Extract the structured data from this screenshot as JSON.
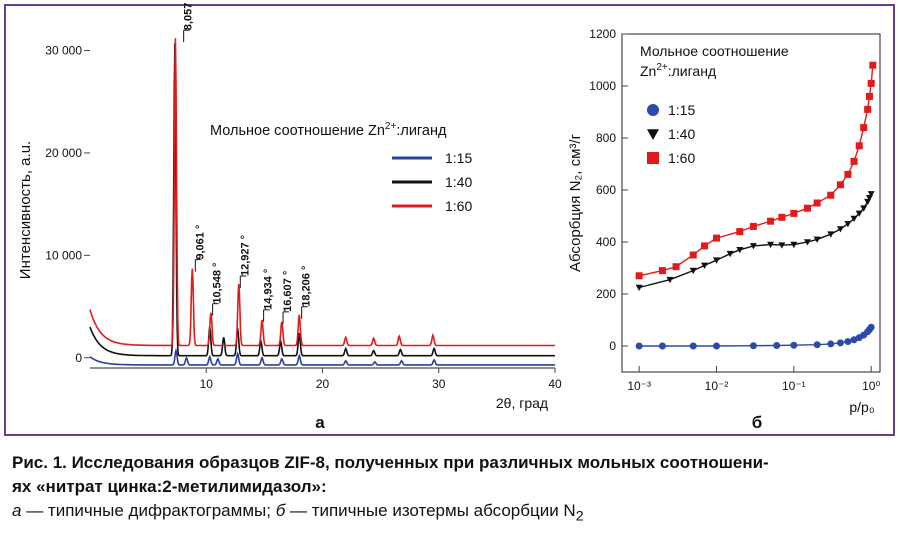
{
  "figure": {
    "caption_title": "Рис. 1. Исследования образцов ZIF-8, полученных при различных мольных соотношени-",
    "caption_title2": "ях «нитрат цинка:2-метилимидазол»:",
    "caption_a_letter": "а",
    "caption_a_text": " — типичные дифрактограммы; ",
    "caption_b_letter": "б",
    "caption_b_text": " — типичные изотермы абсорбции N",
    "caption_b_sub": "2"
  },
  "colors": {
    "blue": "#2b3f9e",
    "black": "#111111",
    "red": "#e01b1b",
    "frame": "#6b3d8c",
    "blue_marker": "#2c4aa8"
  },
  "chart_data": [
    {
      "type": "line",
      "panel_label": "а",
      "xlabel": "2θ, град",
      "ylabel": "Интенсивность, а.u.",
      "xlim": [
        0,
        40
      ],
      "ylim": [
        -1000,
        32000
      ],
      "x_ticks": [
        "10",
        "20",
        "30",
        "40"
      ],
      "x_tick_values": [
        10,
        20,
        30,
        40
      ],
      "y_ticks": [
        "0",
        "10 000",
        "20 000",
        "30 000"
      ],
      "y_tick_values": [
        0,
        10000,
        20000,
        30000
      ],
      "legend_title_main": "Мольное соотношение Zn",
      "legend_title_sup": "2+",
      "legend_title_end": ":лиганд",
      "peak_labels": [
        {
          "x": 8.057,
          "y": 31200,
          "text": "8,057 °"
        },
        {
          "x": 9.061,
          "y": 8800,
          "text": "9,061 °"
        },
        {
          "x": 10.548,
          "y": 4500,
          "text": "10,548 °"
        },
        {
          "x": 12.927,
          "y": 7200,
          "text": "12,927 °"
        },
        {
          "x": 14.934,
          "y": 3900,
          "text": "14,934 °"
        },
        {
          "x": 16.607,
          "y": 3700,
          "text": "16,607 °"
        },
        {
          "x": 18.206,
          "y": 4200,
          "text": "18,206 °"
        }
      ],
      "series": [
        {
          "name": "1:15",
          "color": "#2b3f9e",
          "offset": -700,
          "peaks": [
            [
              7.4,
              1400
            ],
            [
              8.3,
              700
            ],
            [
              10.3,
              800
            ],
            [
              11.0,
              600
            ],
            [
              12.7,
              1100
            ],
            [
              14.8,
              700
            ],
            [
              16.5,
              600
            ],
            [
              18.0,
              900
            ],
            [
              22.0,
              400
            ],
            [
              24.5,
              300
            ],
            [
              26.8,
              400
            ],
            [
              29.6,
              500
            ]
          ],
          "bg_start": 800
        },
        {
          "name": "1:40",
          "color": "#111111",
          "offset": 200,
          "peaks": [
            [
              7.3,
              30500
            ],
            [
              10.3,
              2800
            ],
            [
              11.5,
              1800
            ],
            [
              12.7,
              2700
            ],
            [
              14.7,
              1400
            ],
            [
              16.4,
              1400
            ],
            [
              18.0,
              2200
            ],
            [
              22.0,
              700
            ],
            [
              24.4,
              500
            ],
            [
              26.7,
              600
            ],
            [
              29.6,
              700
            ]
          ],
          "bg_start": 2800
        },
        {
          "name": "1:60",
          "color": "#e01b1b",
          "offset": 1200,
          "peaks": [
            [
              7.35,
              30000
            ],
            [
              8.8,
              7500
            ],
            [
              10.4,
              3200
            ],
            [
              12.8,
              6000
            ],
            [
              14.8,
              2500
            ],
            [
              16.5,
              2300
            ],
            [
              18.0,
              3000
            ],
            [
              22.0,
              800
            ],
            [
              24.4,
              700
            ],
            [
              26.6,
              900
            ],
            [
              29.5,
              1000
            ]
          ],
          "bg_start": 3500
        }
      ]
    },
    {
      "type": "scatter",
      "panel_label": "б",
      "xlabel": "p/p₀",
      "ylabel": "Абсорбция N₂, см³/г",
      "x_scale": "log",
      "xlim": [
        0.0006,
        1.3
      ],
      "ylim": [
        -100,
        1200
      ],
      "x_ticks": [
        "10⁻³",
        "10⁻²",
        "10⁻¹",
        "10⁰"
      ],
      "x_tick_values": [
        0.001,
        0.01,
        0.1,
        1
      ],
      "y_ticks": [
        "0",
        "200",
        "400",
        "600",
        "800",
        "1000",
        "1200"
      ],
      "y_tick_values": [
        0,
        200,
        400,
        600,
        800,
        1000,
        1200
      ],
      "legend_title_line1": "Мольное соотношение",
      "legend_title_line2_main": "Zn",
      "legend_title_line2_sup": "2+",
      "legend_title_line2_end": ":лиганд",
      "series": [
        {
          "name": "1:15",
          "marker": "circle",
          "color": "#2c4aa8",
          "x": [
            0.001,
            0.002,
            0.005,
            0.01,
            0.03,
            0.06,
            0.1,
            0.2,
            0.3,
            0.4,
            0.5,
            0.6,
            0.7,
            0.8,
            0.9,
            0.95,
            1.0
          ],
          "y": [
            0,
            0,
            0,
            0,
            1,
            2,
            3,
            5,
            8,
            12,
            17,
            24,
            32,
            42,
            55,
            63,
            72
          ]
        },
        {
          "name": "1:40",
          "marker": "triangle",
          "color": "#111111",
          "x": [
            0.001,
            0.0025,
            0.005,
            0.007,
            0.01,
            0.015,
            0.02,
            0.03,
            0.05,
            0.07,
            0.1,
            0.15,
            0.2,
            0.3,
            0.4,
            0.5,
            0.6,
            0.7,
            0.8,
            0.9,
            0.95,
            1.0
          ],
          "y": [
            225,
            255,
            290,
            310,
            330,
            355,
            370,
            385,
            390,
            388,
            390,
            400,
            410,
            430,
            450,
            470,
            490,
            510,
            530,
            555,
            570,
            585
          ]
        },
        {
          "name": "1:60",
          "marker": "square",
          "color": "#e01b1b",
          "x": [
            0.001,
            0.002,
            0.003,
            0.005,
            0.007,
            0.01,
            0.02,
            0.03,
            0.05,
            0.07,
            0.1,
            0.15,
            0.2,
            0.3,
            0.4,
            0.5,
            0.6,
            0.7,
            0.8,
            0.9,
            0.95,
            1.0,
            1.05
          ],
          "y": [
            270,
            290,
            305,
            350,
            385,
            415,
            440,
            460,
            480,
            495,
            510,
            530,
            550,
            580,
            620,
            660,
            710,
            770,
            840,
            910,
            960,
            1010,
            1080
          ]
        }
      ]
    }
  ]
}
